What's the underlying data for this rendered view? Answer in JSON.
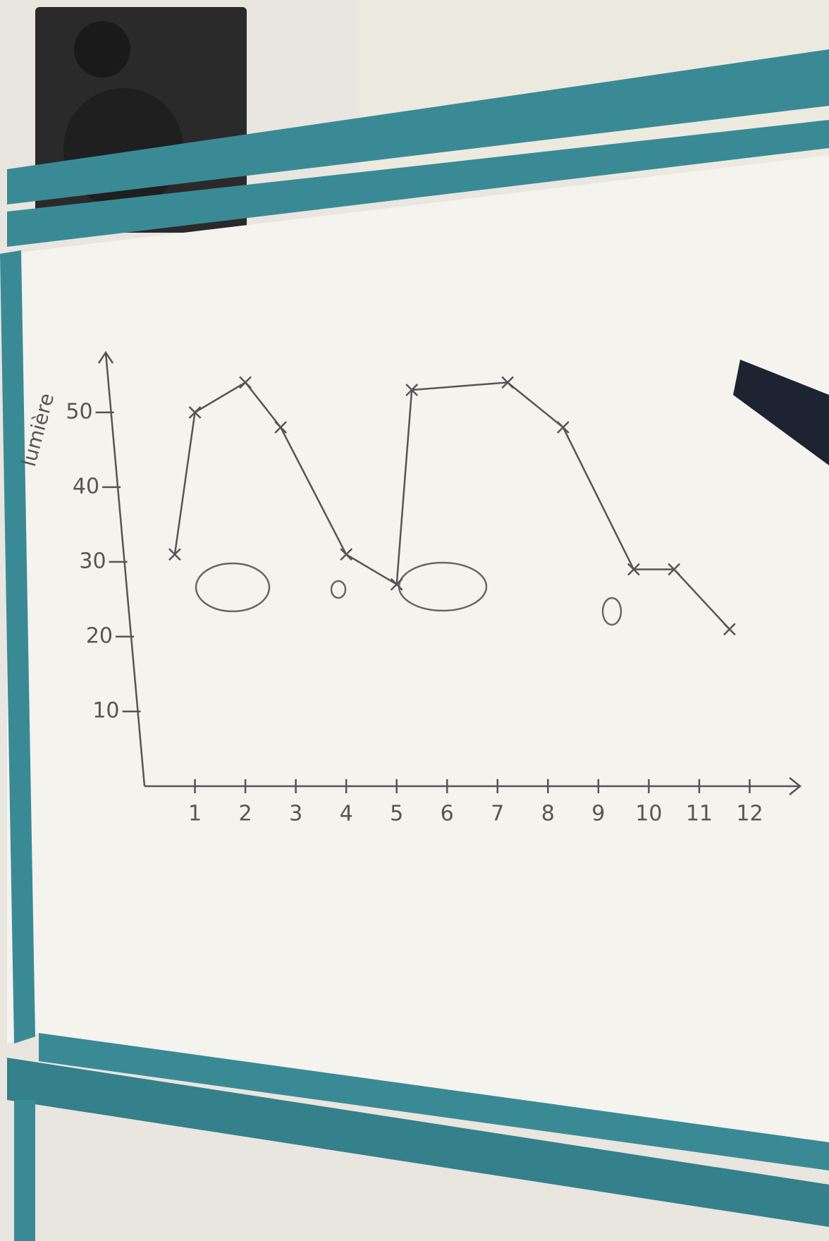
{
  "chart_data": {
    "type": "line",
    "y_label": "lumière",
    "x": [
      0.6,
      1,
      2,
      2.7,
      4,
      5,
      5.3,
      7.2,
      8.3,
      9.7,
      10.5,
      11.6
    ],
    "series": [
      {
        "color": "#555555",
        "values": [
          31,
          50,
          54,
          48,
          31,
          27,
          53,
          54,
          48,
          29,
          29,
          21
        ]
      }
    ],
    "xlim": [
      0,
      13
    ],
    "xticks": [
      1,
      2,
      3,
      4,
      5,
      6,
      7,
      8,
      9,
      10,
      11,
      12
    ],
    "ylim": [
      0,
      58
    ],
    "yticks": [
      10,
      20,
      30,
      40,
      50
    ]
  }
}
